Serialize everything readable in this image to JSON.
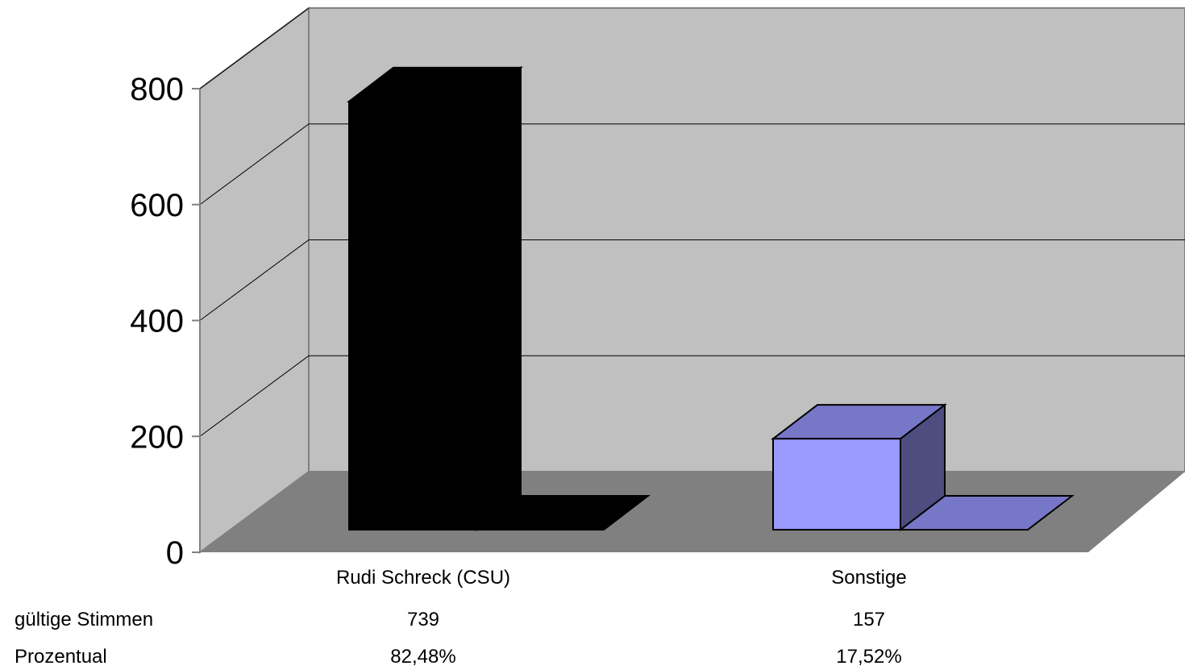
{
  "chart_data": {
    "type": "bar",
    "categories": [
      "Rudi Schreck (CSU)",
      "Sonstige"
    ],
    "values": [
      739,
      157
    ],
    "ylim": [
      0,
      800
    ],
    "yticks": [
      0,
      200,
      400,
      600,
      800
    ],
    "colors": [
      "#000000",
      "#9999ff"
    ],
    "grid": true,
    "table": {
      "rows": [
        {
          "label": "gültige Stimmen",
          "cells": [
            "739",
            "157"
          ]
        },
        {
          "label": "Prozentual",
          "cells": [
            "82,48%",
            "17,52%"
          ]
        }
      ]
    }
  }
}
